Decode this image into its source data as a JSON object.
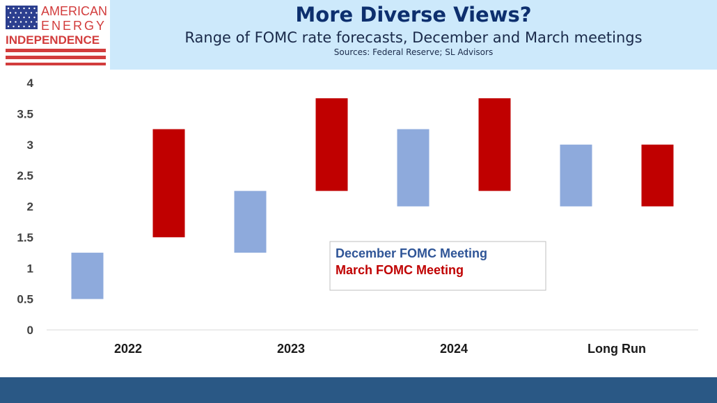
{
  "header": {
    "title": "More Diverse Views?",
    "subtitle": "Range of FOMC rate forecasts, December and March meetings",
    "sources": "Sources: Federal Reserve; SL Advisors"
  },
  "logo": {
    "line1": "AMERICAN",
    "line2": "ENERGY",
    "line3": "INDEPENDENCE",
    "text_color": "#d23c3c",
    "flag_blue": "#2c3f8f",
    "stripe_color": "#d23c3c"
  },
  "colors": {
    "header_bg": "#cde9fb",
    "footer_bg": "#2a5885",
    "december": "#8eaadc",
    "march": "#c00000"
  },
  "chart_data": {
    "type": "bar",
    "categories": [
      "2022",
      "2023",
      "2024",
      "Long Run"
    ],
    "series": [
      {
        "name": "December FOMC Meeting",
        "color": "#8eaadc",
        "text_color": "#2f5597",
        "ranges": [
          [
            0.5,
            1.25
          ],
          [
            1.25,
            2.25
          ],
          [
            2.0,
            3.25
          ],
          [
            2.0,
            3.0
          ]
        ]
      },
      {
        "name": "March FOMC Meeting",
        "color": "#c00000",
        "text_color": "#c00000",
        "ranges": [
          [
            1.5,
            3.25
          ],
          [
            2.25,
            3.75
          ],
          [
            2.25,
            3.75
          ],
          [
            2.0,
            3.0
          ]
        ]
      }
    ],
    "y_ticks": [
      "0",
      "0.5",
      "1",
      "1.5",
      "2",
      "2.5",
      "3",
      "3.5",
      "4"
    ],
    "ylim": [
      0,
      4
    ],
    "grid": false,
    "legend_position": "center"
  }
}
